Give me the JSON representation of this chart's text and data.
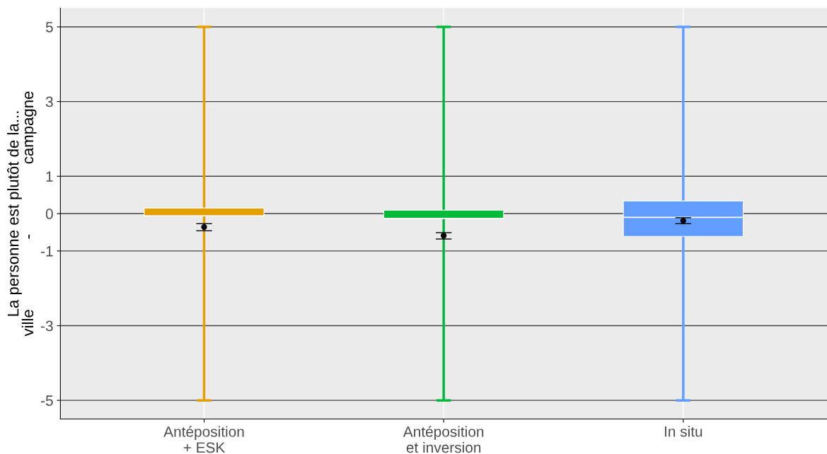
{
  "chart_data": {
    "type": "box",
    "ylabel": "La personne est plutôt de la...\nville                -                campagne",
    "categories": [
      "Antéposition\n+ ESK",
      "Antéposition\net inversion",
      "In situ"
    ],
    "colors": [
      "#e69f00",
      "#00ba38",
      "#619cff"
    ],
    "boxes": [
      {
        "low": -5,
        "q1": -0.06,
        "median": -0.06,
        "q3": 0.15,
        "high": 5
      },
      {
        "low": -5,
        "q1": -0.13,
        "median": -0.13,
        "q3": 0.09,
        "high": 5
      },
      {
        "low": -5,
        "q1": -0.61,
        "median": -0.1,
        "q3": 0.34,
        "high": 5
      }
    ],
    "series": [
      {
        "type": "scatter",
        "color": "#000000",
        "x": [
          "Antéposition\n+ ESK",
          "Antéposition\net inversion",
          "In situ"
        ],
        "values": [
          -0.36,
          -0.59,
          -0.19
        ],
        "errors": [
          [
            -0.46,
            -0.27
          ],
          [
            -0.68,
            -0.51
          ],
          [
            -0.27,
            -0.11
          ]
        ]
      }
    ],
    "ylim": [
      -5.5,
      5.5
    ],
    "yticks": [
      -5,
      -3,
      -1,
      0,
      1,
      3,
      5
    ],
    "grid": true,
    "marker": "circle"
  }
}
